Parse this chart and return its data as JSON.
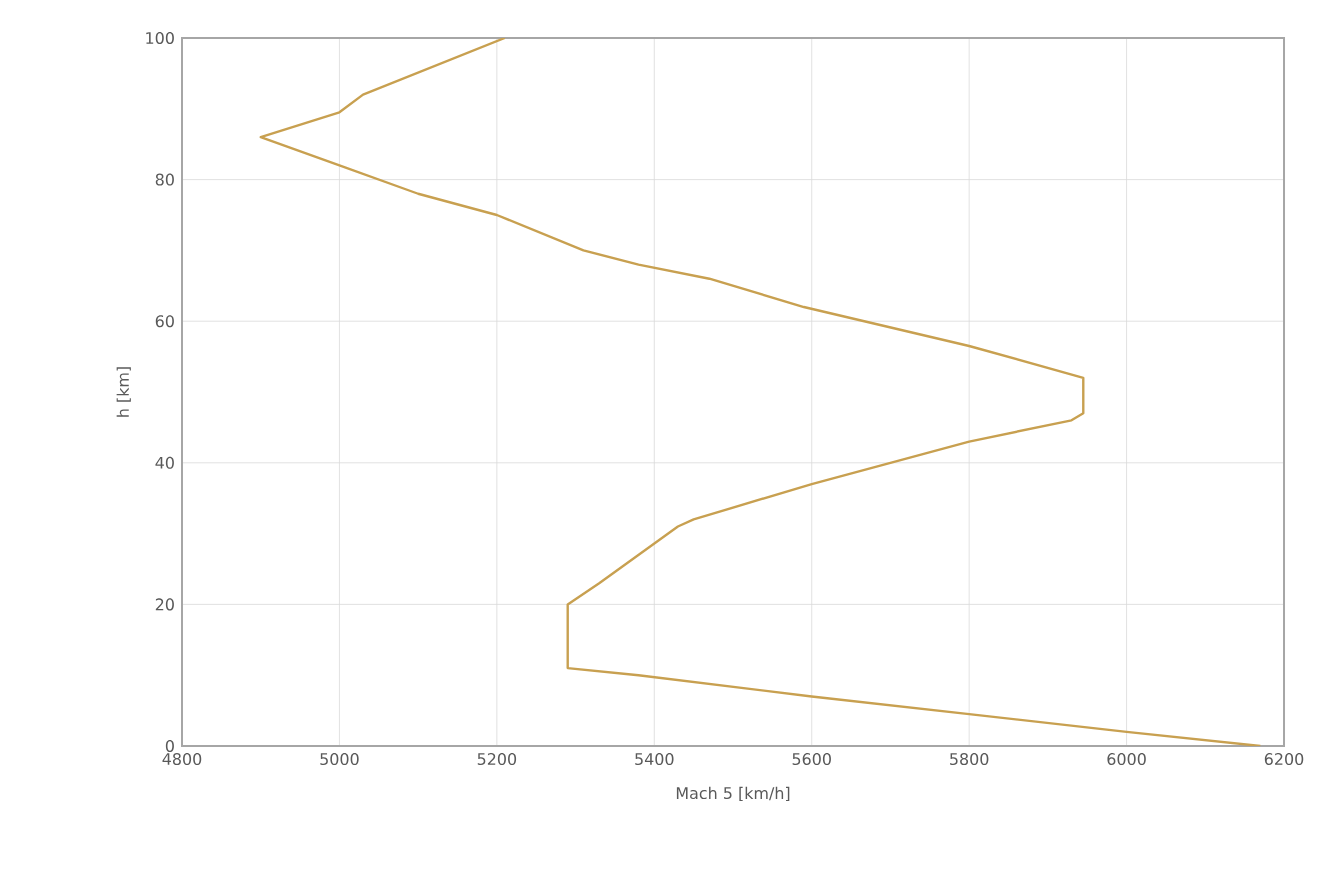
{
  "chart_data": {
    "type": "line",
    "xlabel": "Mach 5 [km/h]",
    "ylabel": "h [km]",
    "xlim": [
      4800,
      6200
    ],
    "xticks": [
      4800,
      5000,
      5200,
      5400,
      5600,
      5800,
      6000,
      6200
    ],
    "ylim": [
      0,
      100
    ],
    "yticks": [
      0,
      20,
      40,
      60,
      80,
      100
    ],
    "grid": true,
    "series": [
      {
        "color": "#c8a050",
        "x": [
          6170,
          6000,
          5800,
          5600,
          5380,
          5290,
          5290,
          5330,
          5430,
          5450,
          5600,
          5800,
          5930,
          5945,
          5945,
          5800,
          5590,
          5470,
          5380,
          5310,
          5200,
          5100,
          5000,
          4900,
          5000,
          5030,
          5210
        ],
        "values": [
          0,
          2,
          4.5,
          7,
          10,
          11,
          20,
          23,
          31,
          32,
          37,
          43,
          46,
          47,
          52,
          56.5,
          62,
          66,
          68,
          70,
          75,
          78,
          82,
          86,
          89.5,
          92,
          100
        ]
      }
    ]
  }
}
